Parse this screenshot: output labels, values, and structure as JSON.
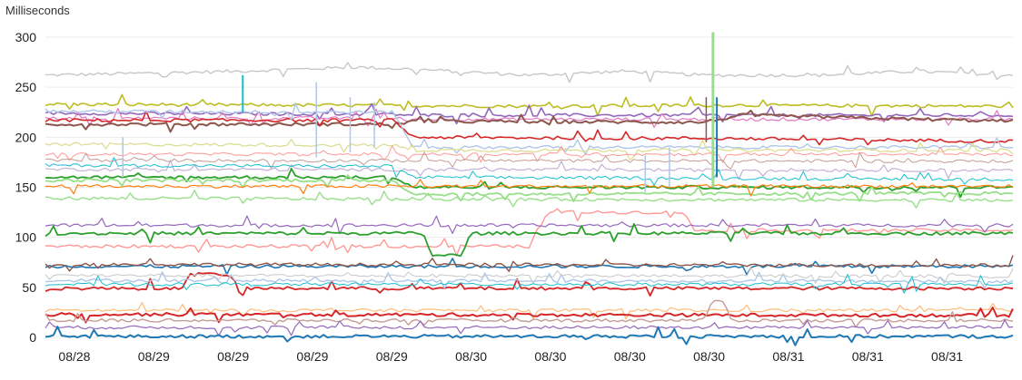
{
  "chart_data": {
    "type": "line",
    "ylabel": "Milliseconds",
    "ylim": [
      0,
      305
    ],
    "y_ticks": [
      0,
      50,
      100,
      150,
      200,
      250,
      300
    ],
    "x_tick_labels": [
      "08/28",
      "08/29",
      "08/29",
      "08/29",
      "08/29",
      "08/30",
      "08/30",
      "08/30",
      "08/30",
      "08/31",
      "08/31",
      "08/31"
    ],
    "x_range": [
      0,
      100
    ],
    "x_ticks": [
      3.0,
      11.2,
      19.4,
      27.6,
      35.8,
      44.0,
      52.2,
      60.4,
      68.6,
      76.8,
      85.0,
      93.2
    ],
    "grid": true,
    "legend": "none",
    "series": [
      {
        "color": "#c7c7c7",
        "stroke": 1.4,
        "points": [
          [
            0,
            262
          ],
          [
            20,
            266
          ],
          [
            32,
            270
          ],
          [
            38,
            268
          ],
          [
            50,
            262
          ],
          [
            60,
            266
          ],
          [
            68,
            262
          ],
          [
            80,
            262
          ],
          [
            90,
            266
          ],
          [
            100,
            262
          ]
        ]
      },
      {
        "color": "#bcbd22",
        "stroke": 1.6,
        "points": [
          [
            0,
            233
          ],
          [
            30,
            232
          ],
          [
            50,
            231
          ],
          [
            70,
            232
          ],
          [
            100,
            231
          ]
        ]
      },
      {
        "color": "#9467bd",
        "stroke": 1.6,
        "points": [
          [
            0,
            224
          ],
          [
            36,
            223
          ],
          [
            38,
            222
          ],
          [
            100,
            222
          ]
        ]
      },
      {
        "color": "#e377c2",
        "stroke": 1.2,
        "points": [
          [
            0,
            219
          ],
          [
            36,
            219
          ],
          [
            38,
            218
          ],
          [
            100,
            218
          ]
        ]
      },
      {
        "color": "#8c564b",
        "stroke": 2.0,
        "points": [
          [
            0,
            213
          ],
          [
            36,
            213
          ],
          [
            38,
            216
          ],
          [
            68,
            215
          ],
          [
            72,
            222
          ],
          [
            100,
            216
          ]
        ]
      },
      {
        "color": "#d62728",
        "stroke": 1.6,
        "points": [
          [
            0,
            217
          ],
          [
            36,
            217
          ],
          [
            38,
            200
          ],
          [
            60,
            199
          ],
          [
            68,
            199
          ],
          [
            100,
            196
          ]
        ]
      },
      {
        "color": "#aec7e8",
        "stroke": 1.4,
        "points": [
          [
            0,
            226
          ],
          [
            36,
            225
          ],
          [
            38,
            190
          ],
          [
            100,
            190
          ]
        ]
      },
      {
        "color": "#dbdb8d",
        "stroke": 1.2,
        "points": [
          [
            0,
            193
          ],
          [
            36,
            192
          ],
          [
            38,
            187
          ],
          [
            100,
            187
          ]
        ]
      },
      {
        "color": "#ff9896",
        "stroke": 1.0,
        "points": [
          [
            0,
            183
          ],
          [
            100,
            183
          ]
        ]
      },
      {
        "color": "#c49c94",
        "stroke": 1.0,
        "points": [
          [
            0,
            177
          ],
          [
            100,
            176
          ]
        ]
      },
      {
        "color": "#c5b0d5",
        "stroke": 1.2,
        "points": [
          [
            0,
            168
          ],
          [
            100,
            167
          ]
        ]
      },
      {
        "color": "#17becf",
        "stroke": 1.0,
        "points": [
          [
            0,
            172
          ],
          [
            36,
            171
          ],
          [
            38,
            160
          ],
          [
            100,
            158
          ]
        ]
      },
      {
        "color": "#2ca02c",
        "stroke": 1.8,
        "points": [
          [
            0,
            160
          ],
          [
            36,
            160
          ],
          [
            38,
            150
          ],
          [
            100,
            150
          ]
        ]
      },
      {
        "color": "#98df8a",
        "stroke": 1.8,
        "points": [
          [
            0,
            157
          ],
          [
            36,
            157
          ],
          [
            38,
            143
          ],
          [
            100,
            144
          ]
        ]
      },
      {
        "color": "#ff7f0e",
        "stroke": 1.2,
        "points": [
          [
            0,
            151
          ],
          [
            100,
            151
          ]
        ]
      },
      {
        "color": "#98df8a",
        "stroke": 1.4,
        "points": [
          [
            0,
            139
          ],
          [
            100,
            137
          ]
        ]
      },
      {
        "color": "#ff9896",
        "stroke": 1.4,
        "points": [
          [
            0,
            91
          ],
          [
            50,
            91
          ],
          [
            52,
            125
          ],
          [
            66,
            125
          ],
          [
            67,
            107
          ],
          [
            100,
            107
          ]
        ]
      },
      {
        "color": "#9467bd",
        "stroke": 1.2,
        "points": [
          [
            0,
            112
          ],
          [
            100,
            112
          ]
        ]
      },
      {
        "color": "#2ca02c",
        "stroke": 1.8,
        "points": [
          [
            0,
            104
          ],
          [
            39,
            104
          ],
          [
            40,
            82
          ],
          [
            43,
            82
          ],
          [
            44,
            104
          ],
          [
            100,
            104
          ]
        ]
      },
      {
        "color": "#1f77b4",
        "stroke": 1.6,
        "points": [
          [
            0,
            71
          ],
          [
            100,
            71
          ]
        ]
      },
      {
        "color": "#8c564b",
        "stroke": 1.4,
        "points": [
          [
            0,
            73
          ],
          [
            100,
            72
          ]
        ]
      },
      {
        "color": "#d62728",
        "stroke": 1.8,
        "points": [
          [
            0,
            49
          ],
          [
            14,
            49
          ],
          [
            15,
            63
          ],
          [
            19,
            63
          ],
          [
            20,
            49
          ],
          [
            100,
            49
          ]
        ]
      },
      {
        "color": "#aec7e8",
        "stroke": 1.4,
        "points": [
          [
            0,
            57
          ],
          [
            100,
            56
          ]
        ]
      },
      {
        "color": "#c7c7c7",
        "stroke": 1.0,
        "points": [
          [
            0,
            62
          ],
          [
            100,
            61
          ]
        ]
      },
      {
        "color": "#17becf",
        "stroke": 1.0,
        "points": [
          [
            0,
            53
          ],
          [
            100,
            53
          ]
        ]
      },
      {
        "color": "#ffbb78",
        "stroke": 1.2,
        "points": [
          [
            0,
            27
          ],
          [
            100,
            27
          ]
        ]
      },
      {
        "color": "#d62728",
        "stroke": 2.0,
        "points": [
          [
            0,
            23
          ],
          [
            100,
            22
          ]
        ]
      },
      {
        "color": "#c49c94",
        "stroke": 1.4,
        "points": [
          [
            0,
            17
          ],
          [
            68,
            17
          ],
          [
            69,
            36
          ],
          [
            70,
            36
          ],
          [
            71,
            17
          ],
          [
            100,
            17
          ]
        ]
      },
      {
        "color": "#9467bd",
        "stroke": 1.2,
        "points": [
          [
            0,
            10
          ],
          [
            100,
            10
          ]
        ]
      },
      {
        "color": "#1f77b4",
        "stroke": 2.0,
        "points": [
          [
            0,
            1
          ],
          [
            100,
            1
          ]
        ]
      }
    ],
    "spikes": [
      {
        "x": 69.0,
        "y0": 150,
        "y1": 305,
        "color": "#98df8a",
        "width": 3
      },
      {
        "x": 69.4,
        "y0": 160,
        "y1": 240,
        "color": "#1f77b4",
        "width": 2
      },
      {
        "x": 20.4,
        "y0": 225,
        "y1": 262,
        "color": "#17becf",
        "width": 2
      },
      {
        "x": 28.0,
        "y0": 180,
        "y1": 255,
        "color": "#aec7e8",
        "width": 1.5
      },
      {
        "x": 31.5,
        "y0": 185,
        "y1": 240,
        "color": "#aec7e8",
        "width": 1.5
      },
      {
        "x": 34.0,
        "y0": 190,
        "y1": 235,
        "color": "#aec7e8",
        "width": 1.5
      },
      {
        "x": 8.0,
        "y0": 160,
        "y1": 200,
        "color": "#aec7e8",
        "width": 1.5
      },
      {
        "x": 64.5,
        "y0": 150,
        "y1": 190,
        "color": "#aec7e8",
        "width": 1.5
      },
      {
        "x": 62.0,
        "y0": 145,
        "y1": 182,
        "color": "#aec7e8",
        "width": 1.5
      },
      {
        "x": 68.3,
        "y0": 195,
        "y1": 240,
        "color": "#8c564b",
        "width": 1.5
      }
    ]
  }
}
